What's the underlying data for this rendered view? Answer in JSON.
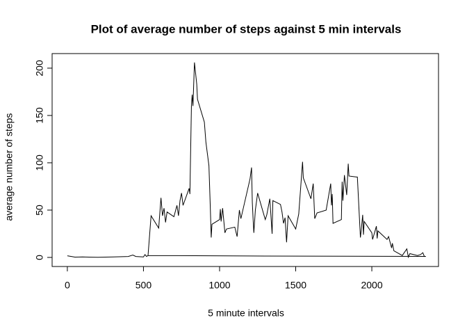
{
  "chart_data": {
    "type": "line",
    "title": "Plot of average number of steps against 5 min intervals",
    "x_label": "5 minute intervals",
    "y_label": "average number of steps",
    "color": "#000000",
    "xlim": [
      -100,
      2438
    ],
    "ylim": [
      -9.6,
      215.4
    ],
    "xticks": [
      0,
      500,
      1000,
      1500,
      2000
    ],
    "yticks": [
      0,
      50,
      100,
      150,
      200
    ],
    "x": [
      0,
      50,
      100,
      200,
      300,
      400,
      430,
      450,
      500,
      510,
      520,
      530,
      550,
      600,
      615,
      625,
      635,
      645,
      655,
      700,
      720,
      730,
      740,
      750,
      760,
      800,
      805,
      815,
      820,
      825,
      835,
      850,
      855,
      900,
      910,
      930,
      940,
      945,
      950,
      1000,
      1005,
      1010,
      1020,
      1035,
      1045,
      1100,
      1115,
      1130,
      1140,
      1200,
      1210,
      1215,
      1220,
      1225,
      1235,
      1250,
      1300,
      1310,
      1330,
      1345,
      1350,
      1400,
      1410,
      1420,
      1430,
      1440,
      1450,
      1500,
      1520,
      1545,
      1550,
      1600,
      1615,
      1625,
      1640,
      1700,
      1730,
      1735,
      1740,
      1745,
      1800,
      1805,
      1810,
      1820,
      1835,
      1845,
      1850,
      1900,
      1905,
      1925,
      1930,
      1940,
      1945,
      1950,
      2000,
      2005,
      2030,
      2035,
      2040,
      2100,
      2110,
      2130,
      2135,
      2145,
      2200,
      2230,
      2240,
      2250,
      2300,
      2320,
      2335,
      2345,
      2355,
      1200,
      530
    ],
    "values": [
      1.7,
      0.3,
      0.5,
      0.1,
      0.5,
      1,
      2.5,
      1,
      0.5,
      3,
      1,
      2,
      44,
      31,
      63,
      44,
      52,
      37,
      48,
      43,
      55,
      44,
      60,
      68,
      55,
      73,
      67,
      160,
      172,
      160,
      206,
      183,
      167,
      143,
      122,
      97,
      48,
      21,
      35,
      40,
      51,
      38,
      52,
      26,
      30,
      32,
      22,
      50,
      41,
      83,
      95,
      58,
      41,
      26,
      50,
      68,
      40,
      45,
      62,
      25,
      60,
      56,
      48,
      36,
      42,
      16,
      44,
      30,
      46,
      101,
      84,
      62,
      78,
      41,
      47,
      50,
      78,
      55,
      67,
      36,
      40,
      80,
      60,
      87,
      66,
      99,
      86,
      85,
      85,
      21,
      28,
      45,
      24,
      38,
      26,
      19,
      33,
      20,
      28,
      19,
      22,
      10,
      15,
      7,
      2,
      9,
      0.3,
      4,
      2,
      3,
      5,
      1,
      1.1,
      1.5,
      2
    ]
  }
}
